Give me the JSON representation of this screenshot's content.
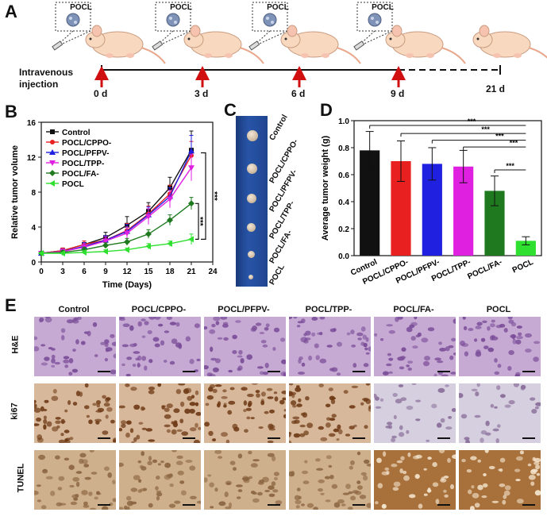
{
  "panels": {
    "A": "A",
    "B": "B",
    "C": "C",
    "D": "D",
    "E": "E"
  },
  "panel_a": {
    "pocl_label": "POCL",
    "injection_label_1": "Intravenous",
    "injection_label_2": "injection",
    "days": [
      "0 d",
      "3 d",
      "6 d",
      "9 d",
      "21 d"
    ]
  },
  "colors": {
    "control": "#111111",
    "cppo": "#e82020",
    "pfpv": "#2020e0",
    "tpp": "#e020e0",
    "fa": "#1f7a1f",
    "pocl": "#30e030",
    "he": "#b89ac8",
    "ki67": "#8a5028",
    "tunel": "#c9a887"
  },
  "chart_data": [
    {
      "type": "line",
      "ylabel": "Relative tumor volume",
      "xlabel": "Time (Days)",
      "x": [
        0,
        3,
        6,
        9,
        12,
        15,
        18,
        21
      ],
      "xticks": [
        0,
        3,
        6,
        9,
        12,
        15,
        18,
        21,
        24
      ],
      "yticks": [
        0,
        4,
        8,
        12,
        16
      ],
      "xlim": [
        0,
        24
      ],
      "ylim": [
        0,
        16
      ],
      "series": [
        {
          "name": "Control",
          "color_key": "control",
          "marker": "square",
          "values": [
            1,
            1.3,
            2.0,
            2.8,
            4.2,
            5.8,
            8.5,
            12.8
          ],
          "err": [
            0.1,
            0.3,
            0.4,
            0.6,
            1.0,
            1.0,
            1.2,
            2.2
          ]
        },
        {
          "name": "POCL/CPPO-",
          "color_key": "cppo",
          "marker": "circle",
          "values": [
            1,
            1.3,
            2.0,
            2.5,
            3.6,
            5.5,
            7.8,
            12.2
          ],
          "err": [
            0.1,
            0.3,
            0.4,
            0.5,
            0.8,
            0.9,
            1.0,
            1.6
          ]
        },
        {
          "name": "POCL/PFPV-",
          "color_key": "pfpv",
          "marker": "triangle",
          "values": [
            1,
            1.2,
            1.8,
            2.5,
            3.5,
            5.4,
            7.5,
            12.7
          ],
          "err": [
            0.1,
            0.3,
            0.4,
            0.5,
            0.8,
            0.9,
            1.0,
            1.8
          ]
        },
        {
          "name": "POCL/TPP-",
          "color_key": "tpp",
          "marker": "triangle-down",
          "values": [
            1,
            1.2,
            1.7,
            2.4,
            3.3,
            5.2,
            7.2,
            10.8
          ],
          "err": [
            0.1,
            0.3,
            0.4,
            0.5,
            0.7,
            0.9,
            1.0,
            1.5
          ]
        },
        {
          "name": "POCL/FA-",
          "color_key": "fa",
          "marker": "diamond",
          "values": [
            1,
            1.1,
            1.4,
            1.9,
            2.3,
            3.2,
            4.8,
            6.7
          ],
          "err": [
            0.1,
            0.2,
            0.3,
            0.3,
            0.4,
            0.5,
            0.6,
            0.7
          ]
        },
        {
          "name": "POCL",
          "color_key": "pocl",
          "marker": "triangle-left",
          "values": [
            1,
            1.0,
            1.1,
            1.2,
            1.4,
            1.8,
            2.1,
            2.6
          ],
          "err": [
            0.1,
            0.1,
            0.2,
            0.2,
            0.2,
            0.3,
            0.3,
            0.6
          ]
        }
      ],
      "significance": [
        "***",
        "***"
      ]
    },
    {
      "type": "bar",
      "ylabel": "Average tumor weight (g)",
      "categories": [
        "Control",
        "POCL/CPPO-",
        "POCL/PFPV-",
        "POCL/TPP-",
        "POCL/FA-",
        "POCL"
      ],
      "values": [
        0.78,
        0.7,
        0.68,
        0.66,
        0.48,
        0.11
      ],
      "err": [
        0.14,
        0.15,
        0.12,
        0.12,
        0.11,
        0.03
      ],
      "color_keys": [
        "control",
        "cppo",
        "pfpv",
        "tpp",
        "fa",
        "pocl"
      ],
      "ylim": [
        0,
        1.0
      ],
      "yticks": [
        0.0,
        0.2,
        0.4,
        0.6,
        0.8,
        1.0
      ],
      "significance": [
        "***",
        "***",
        "***",
        "***",
        "***"
      ]
    }
  ],
  "panel_c": {
    "labels": [
      "Control",
      "POCL/CPPO-",
      "POCL/PFPV-",
      "POCL/TPP-",
      "POCL/FA-",
      "POCL"
    ]
  },
  "panel_e": {
    "columns": [
      "Control",
      "POCL/CPPO-",
      "POCL/PFPV-",
      "POCL/TPP-",
      "POCL/FA-",
      "POCL"
    ],
    "rows": [
      "H&E",
      "ki67",
      "TUNEL"
    ]
  }
}
